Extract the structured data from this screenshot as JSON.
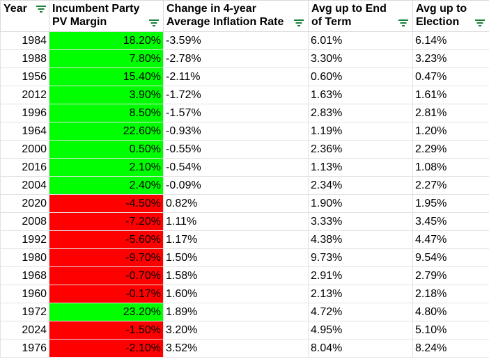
{
  "columns": [
    {
      "label": "Year"
    },
    {
      "label": "Incumbent Party\nPV Margin"
    },
    {
      "label": "Change in 4-year\nAverage Inflation Rate"
    },
    {
      "label": "Avg up to End\nof Term"
    },
    {
      "label": "Avg up to\nElection"
    }
  ],
  "colors": {
    "positive": "#00ff00",
    "negative": "#ff0000",
    "filter_icon": "#188038"
  },
  "rows": [
    {
      "year": "1984",
      "margin": "18.20%",
      "sign": "pos",
      "change": "-3.59%",
      "end": "6.01%",
      "elect": "6.14%"
    },
    {
      "year": "1988",
      "margin": "7.80%",
      "sign": "pos",
      "change": "-2.78%",
      "end": "3.30%",
      "elect": "3.23%"
    },
    {
      "year": "1956",
      "margin": "15.40%",
      "sign": "pos",
      "change": "-2.11%",
      "end": "0.60%",
      "elect": "0.47%"
    },
    {
      "year": "2012",
      "margin": "3.90%",
      "sign": "pos",
      "change": "-1.72%",
      "end": "1.63%",
      "elect": "1.61%"
    },
    {
      "year": "1996",
      "margin": "8.50%",
      "sign": "pos",
      "change": "-1.57%",
      "end": "2.83%",
      "elect": "2.81%"
    },
    {
      "year": "1964",
      "margin": "22.60%",
      "sign": "pos",
      "change": "-0.93%",
      "end": "1.19%",
      "elect": "1.20%"
    },
    {
      "year": "2000",
      "margin": "0.50%",
      "sign": "pos",
      "change": "-0.55%",
      "end": "2.36%",
      "elect": "2.29%"
    },
    {
      "year": "2016",
      "margin": "2.10%",
      "sign": "pos",
      "change": "-0.54%",
      "end": "1.13%",
      "elect": "1.08%"
    },
    {
      "year": "2004",
      "margin": "2.40%",
      "sign": "pos",
      "change": "-0.09%",
      "end": "2.34%",
      "elect": "2.27%"
    },
    {
      "year": "2020",
      "margin": "-4.50%",
      "sign": "neg",
      "change": "0.82%",
      "end": "1.90%",
      "elect": "1.95%"
    },
    {
      "year": "2008",
      "margin": "-7.20%",
      "sign": "neg",
      "change": "1.11%",
      "end": "3.33%",
      "elect": "3.45%"
    },
    {
      "year": "1992",
      "margin": "-5.60%",
      "sign": "neg",
      "change": "1.17%",
      "end": "4.38%",
      "elect": "4.47%"
    },
    {
      "year": "1980",
      "margin": "-9.70%",
      "sign": "neg",
      "change": "1.50%",
      "end": "9.73%",
      "elect": "9.54%"
    },
    {
      "year": "1968",
      "margin": "-0.70%",
      "sign": "neg",
      "change": "1.58%",
      "end": "2.91%",
      "elect": "2.79%"
    },
    {
      "year": "1960",
      "margin": "-0.17%",
      "sign": "neg",
      "change": "1.60%",
      "end": "2.13%",
      "elect": "2.18%"
    },
    {
      "year": "1972",
      "margin": "23.20%",
      "sign": "pos",
      "change": "1.89%",
      "end": "4.72%",
      "elect": "4.80%"
    },
    {
      "year": "2024",
      "margin": "-1.50%",
      "sign": "neg",
      "change": "3.20%",
      "end": "4.95%",
      "elect": "5.10%"
    },
    {
      "year": "1976",
      "margin": "-2.10%",
      "sign": "neg",
      "change": "3.52%",
      "end": "8.04%",
      "elect": "8.24%"
    }
  ]
}
